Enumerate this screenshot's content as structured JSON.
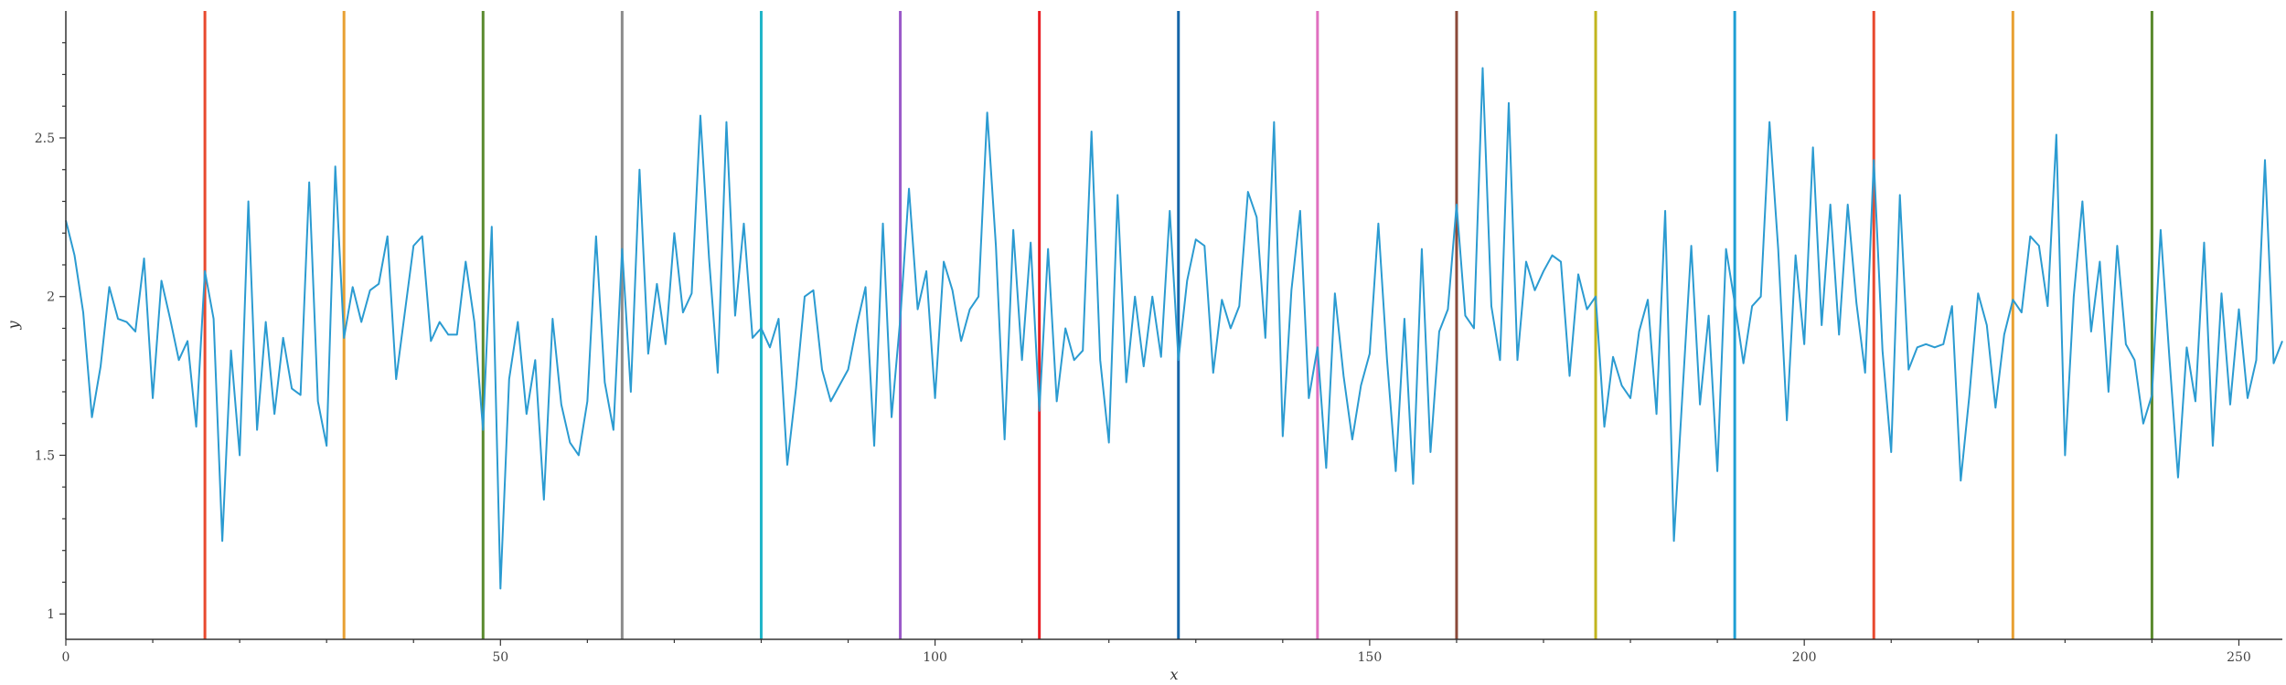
{
  "chart_data": {
    "type": "line",
    "title": "",
    "xlabel": "x",
    "ylabel": "y",
    "xlim": [
      0,
      255
    ],
    "ylim": [
      0.92,
      2.9
    ],
    "grid": false,
    "legend": "none",
    "x_ticks": [
      0,
      50,
      100,
      150,
      200,
      250
    ],
    "x_tick_labels": [
      "0",
      "50",
      "100",
      "150",
      "200",
      "250"
    ],
    "y_ticks": [
      1,
      1.5,
      2,
      2.5
    ],
    "y_tick_labels": [
      "1",
      "1.5",
      "2",
      "2.5"
    ],
    "line_color": "#2b9bd1",
    "series": [
      {
        "x_start": 0,
        "x_step": 1,
        "values": [
          2.24,
          2.13,
          1.95,
          1.62,
          1.78,
          2.03,
          1.93,
          1.92,
          1.89,
          2.12,
          1.68,
          2.05,
          1.93,
          1.8,
          1.86,
          1.59,
          2.08,
          1.93,
          1.23,
          1.83,
          1.5,
          2.3,
          1.58,
          1.92,
          1.63,
          1.87,
          1.71,
          1.69,
          2.36,
          1.67,
          1.53,
          2.41,
          1.87,
          2.03,
          1.92,
          2.02,
          2.04,
          2.19,
          1.74,
          1.95,
          2.16,
          2.19,
          1.86,
          1.92,
          1.88,
          1.88,
          2.11,
          1.92,
          1.58,
          2.22,
          1.08,
          1.74,
          1.92,
          1.63,
          1.8,
          1.36,
          1.93,
          1.66,
          1.54,
          1.5,
          1.67,
          2.19,
          1.73,
          1.58,
          2.15,
          1.7,
          2.4,
          1.82,
          2.04,
          1.85,
          2.2,
          1.95,
          2.01,
          2.57,
          2.12,
          1.76,
          2.55,
          1.94,
          2.23,
          1.87,
          1.9,
          1.84,
          1.93,
          1.47,
          1.71,
          2.0,
          2.02,
          1.77,
          1.67,
          1.72,
          1.77,
          1.91,
          2.03,
          1.53,
          2.23,
          1.62,
          1.93,
          2.34,
          1.96,
          2.08,
          1.68,
          2.11,
          2.02,
          1.86,
          1.96,
          2.0,
          2.58,
          2.16,
          1.55,
          2.21,
          1.8,
          2.17,
          1.64,
          2.15,
          1.67,
          1.9,
          1.8,
          1.83,
          2.52,
          1.8,
          1.54,
          2.32,
          1.73,
          2.0,
          1.78,
          2.0,
          1.81,
          2.27,
          1.8,
          2.05,
          2.18,
          2.16,
          1.76,
          1.99,
          1.9,
          1.97,
          2.33,
          2.25,
          1.87,
          2.55,
          1.56,
          2.02,
          2.27,
          1.68,
          1.84,
          1.46,
          2.01,
          1.75,
          1.55,
          1.72,
          1.82,
          2.23,
          1.8,
          1.45,
          1.93,
          1.41,
          2.15,
          1.51,
          1.89,
          1.96,
          2.29,
          1.94,
          1.9,
          2.72,
          1.97,
          1.8,
          2.61,
          1.8,
          2.11,
          2.02,
          2.08,
          2.13,
          2.11,
          1.75,
          2.07,
          1.96,
          2.0,
          1.59,
          1.81,
          1.72,
          1.68,
          1.89,
          1.99,
          1.63,
          2.27,
          1.23,
          1.7,
          2.16,
          1.66,
          1.94,
          1.45,
          2.15,
          1.98,
          1.79,
          1.97,
          2.0,
          2.55,
          2.15,
          1.61,
          2.13,
          1.85,
          2.47,
          1.91,
          2.29,
          1.88,
          2.29,
          1.98,
          1.76,
          2.43,
          1.83,
          1.51,
          2.32,
          1.77,
          1.84,
          1.85,
          1.84,
          1.85,
          1.97,
          1.42,
          1.69,
          2.01,
          1.91,
          1.65,
          1.88,
          1.99,
          1.95,
          2.19,
          2.16,
          1.97,
          2.51,
          1.5,
          2.0,
          2.3,
          1.89,
          2.11,
          1.7,
          2.16,
          1.85,
          1.8,
          1.6,
          1.69,
          2.21,
          1.81,
          1.43,
          1.84,
          1.67,
          2.17,
          1.53,
          2.01,
          1.66,
          1.96,
          1.68,
          1.8,
          2.43,
          1.79,
          1.86
        ]
      }
    ],
    "vlines": [
      {
        "x": 16,
        "color": "#e8492e"
      },
      {
        "x": 32,
        "color": "#e8a033"
      },
      {
        "x": 48,
        "color": "#5a8a2e"
      },
      {
        "x": 64,
        "color": "#8c8c8c"
      },
      {
        "x": 80,
        "color": "#1fb5c8"
      },
      {
        "x": 96,
        "color": "#9b59c9"
      },
      {
        "x": 112,
        "color": "#e81e24"
      },
      {
        "x": 128,
        "color": "#1565a8"
      },
      {
        "x": 144,
        "color": "#e070c0"
      },
      {
        "x": 160,
        "color": "#8b4a3a"
      },
      {
        "x": 176,
        "color": "#c2b51e"
      },
      {
        "x": 192,
        "color": "#1f9fd4"
      },
      {
        "x": 208,
        "color": "#e8492e"
      },
      {
        "x": 224,
        "color": "#e8a033"
      },
      {
        "x": 240,
        "color": "#5a8a2e"
      }
    ]
  }
}
